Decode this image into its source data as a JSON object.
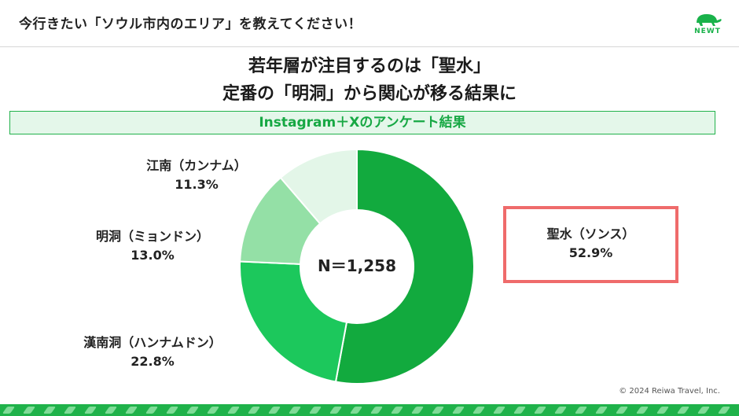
{
  "header": {
    "title": "今行きたい「ソウル市内のエリア」を教えてください！",
    "logo_text": "NEWT"
  },
  "headline": {
    "line1": "若年層が注目するのは「聖水」",
    "line2": "定番の「明洞」から関心が移る結果に"
  },
  "subtitle": "Instagram＋Xのアンケート結果",
  "chart_data": {
    "type": "pie",
    "variant": "donut",
    "center_label": "N＝1,258",
    "slices": [
      {
        "name": "聖水（ソンス）",
        "value": 52.9,
        "value_label": "52.9%",
        "color": "#12aa3e"
      },
      {
        "name": "漢南洞（ハンナムドン）",
        "value": 22.8,
        "value_label": "22.8%",
        "color": "#1cc85c"
      },
      {
        "name": "明洞（ミョンドン）",
        "value": 13.0,
        "value_label": "13.0%",
        "color": "#94e0a6"
      },
      {
        "name": "江南（カンナム）",
        "value": 11.3,
        "value_label": "11.3%",
        "color": "#e3f6e8"
      }
    ]
  },
  "highlight_color": "#ef6b6b",
  "footer": {
    "copyright": "© 2024 Reiwa Travel, Inc."
  }
}
